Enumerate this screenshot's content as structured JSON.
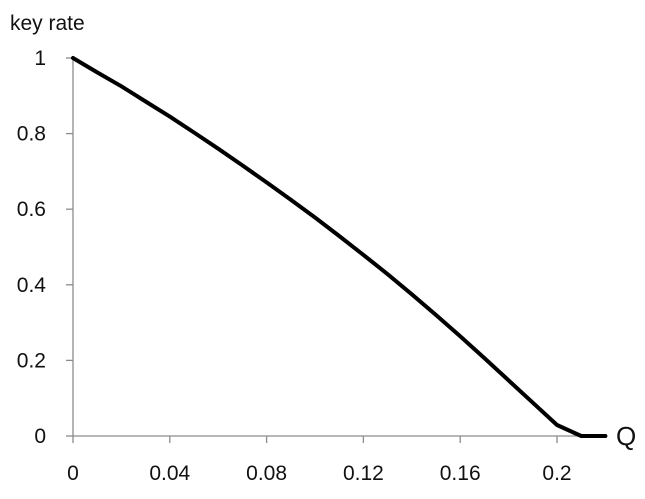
{
  "chart_data": {
    "type": "line",
    "title": "",
    "ylabel": "key rate",
    "xlabel": "Q",
    "xlim": [
      0,
      0.22
    ],
    "ylim": [
      0,
      1
    ],
    "x_ticks": [
      0,
      0.04,
      0.08,
      0.12,
      0.16,
      0.2
    ],
    "x_tick_labels": [
      "0",
      "0.04",
      "0.08",
      "0.12",
      "0.16",
      "0.2"
    ],
    "y_ticks": [
      0,
      0.2,
      0.4,
      0.6,
      0.8,
      1
    ],
    "y_tick_labels": [
      "0",
      "0.2",
      "0.4",
      "0.6",
      "0.8",
      "1"
    ],
    "grid": false,
    "legend": "none",
    "line_color": "#000000",
    "series": [
      {
        "x": [
          0,
          0.01,
          0.02,
          0.03,
          0.04,
          0.05,
          0.06,
          0.07,
          0.08,
          0.09,
          0.1,
          0.11,
          0.12,
          0.13,
          0.14,
          0.15,
          0.16,
          0.17,
          0.18,
          0.19,
          0.2,
          0.21,
          0.22
        ],
        "values": [
          1.0,
          0.962,
          0.925,
          0.885,
          0.845,
          0.803,
          0.76,
          0.716,
          0.671,
          0.625,
          0.578,
          0.529,
          0.479,
          0.428,
          0.375,
          0.32,
          0.264,
          0.206,
          0.147,
          0.088,
          0.029,
          0.0,
          0.0
        ]
      }
    ]
  }
}
